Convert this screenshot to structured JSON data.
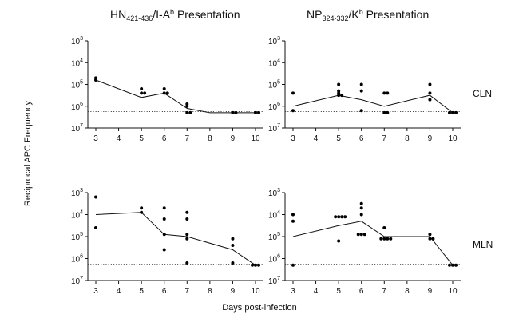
{
  "figure": {
    "ylabel": "Reciprocal APC Frequency",
    "xlabel": "Days post-infection",
    "row_labels": [
      "CLN",
      "MLN"
    ],
    "col_titles": [
      {
        "base": "HN",
        "sub": "421-436",
        "mid": "/I-A",
        "sup": "b",
        "rest": " Presentation"
      },
      {
        "base": "NP",
        "sub": "324-332",
        "mid": "/K",
        "sup": "b",
        "rest": " Presentation"
      }
    ]
  },
  "chart_data": [
    {
      "type": "scatter",
      "panel": "HN CLN",
      "xticks": [
        3,
        4,
        5,
        6,
        7,
        8,
        9,
        10
      ],
      "yticks": [
        {
          "b": "10",
          "e": "3"
        },
        {
          "b": "10",
          "e": "4"
        },
        {
          "b": "10",
          "e": "5"
        },
        {
          "b": "10",
          "e": "6"
        },
        {
          "b": "10",
          "e": "7"
        }
      ],
      "ylim": [
        3,
        7
      ],
      "scale": "log-exponent",
      "threshold": 6.25,
      "points": [
        [
          3,
          4.7
        ],
        [
          3,
          4.8
        ],
        [
          5,
          5.4
        ],
        [
          5,
          5.4
        ],
        [
          5,
          5.2
        ],
        [
          6,
          5.4
        ],
        [
          6,
          5.4
        ],
        [
          6,
          5.2
        ],
        [
          7,
          5.9
        ],
        [
          7,
          6.0
        ],
        [
          7,
          6.3
        ],
        [
          7,
          6.3
        ],
        [
          9,
          6.3
        ],
        [
          9,
          6.3
        ],
        [
          10,
          6.3
        ],
        [
          10,
          6.3
        ]
      ],
      "mean_line": [
        [
          3,
          4.8
        ],
        [
          5,
          5.6
        ],
        [
          6,
          5.4
        ],
        [
          7,
          6.1
        ],
        [
          8,
          6.3
        ],
        [
          9,
          6.3
        ],
        [
          10,
          6.3
        ]
      ]
    },
    {
      "type": "scatter",
      "panel": "NP CLN",
      "xticks": [
        3,
        4,
        5,
        6,
        7,
        8,
        9,
        10
      ],
      "yticks": [
        {
          "b": "10",
          "e": "3"
        },
        {
          "b": "10",
          "e": "4"
        },
        {
          "b": "10",
          "e": "5"
        },
        {
          "b": "10",
          "e": "6"
        },
        {
          "b": "10",
          "e": "7"
        }
      ],
      "ylim": [
        3,
        7
      ],
      "scale": "log-exponent",
      "threshold": 6.25,
      "points": [
        [
          3,
          5.4
        ],
        [
          3,
          6.2
        ],
        [
          5,
          5.0
        ],
        [
          5,
          5.3
        ],
        [
          5,
          5.4
        ],
        [
          5,
          5.5
        ],
        [
          5,
          5.5
        ],
        [
          6,
          5.0
        ],
        [
          6,
          5.3
        ],
        [
          6,
          6.2
        ],
        [
          7,
          5.4
        ],
        [
          7,
          5.4
        ],
        [
          7,
          6.3
        ],
        [
          7,
          6.3
        ],
        [
          9,
          5.0
        ],
        [
          9,
          5.4
        ],
        [
          9,
          5.7
        ],
        [
          10,
          6.3
        ],
        [
          10,
          6.3
        ],
        [
          10,
          6.3
        ]
      ],
      "mean_line": [
        [
          3,
          6.0
        ],
        [
          5,
          5.5
        ],
        [
          6,
          5.7
        ],
        [
          7,
          6.0
        ],
        [
          9,
          5.5
        ],
        [
          10,
          6.3
        ]
      ]
    },
    {
      "type": "scatter",
      "panel": "HN MLN",
      "xticks": [
        3,
        4,
        5,
        6,
        7,
        8,
        9,
        10
      ],
      "yticks": [
        {
          "b": "10",
          "e": "3"
        },
        {
          "b": "10",
          "e": "4"
        },
        {
          "b": "10",
          "e": "5"
        },
        {
          "b": "10",
          "e": "6"
        },
        {
          "b": "10",
          "e": "7"
        }
      ],
      "ylim": [
        3,
        7
      ],
      "scale": "log-exponent",
      "threshold": 6.25,
      "points": [
        [
          3,
          3.2
        ],
        [
          3,
          4.6
        ],
        [
          5,
          3.7
        ],
        [
          5,
          3.9
        ],
        [
          6,
          3.7
        ],
        [
          6,
          4.2
        ],
        [
          6,
          4.9
        ],
        [
          6,
          5.6
        ],
        [
          7,
          3.9
        ],
        [
          7,
          4.2
        ],
        [
          7,
          4.9
        ],
        [
          7,
          5.1
        ],
        [
          7,
          6.2
        ],
        [
          9,
          5.1
        ],
        [
          9,
          5.4
        ],
        [
          9,
          6.2
        ],
        [
          10,
          6.3
        ],
        [
          10,
          6.3
        ],
        [
          10,
          6.3
        ]
      ],
      "mean_line": [
        [
          3,
          4.0
        ],
        [
          5,
          3.9
        ],
        [
          6,
          4.9
        ],
        [
          7,
          5.0
        ],
        [
          9,
          5.6
        ],
        [
          10,
          6.3
        ]
      ]
    },
    {
      "type": "scatter",
      "panel": "NP MLN",
      "xticks": [
        3,
        4,
        5,
        6,
        7,
        8,
        9,
        10
      ],
      "yticks": [
        {
          "b": "10",
          "e": "3"
        },
        {
          "b": "10",
          "e": "4"
        },
        {
          "b": "10",
          "e": "5"
        },
        {
          "b": "10",
          "e": "6"
        },
        {
          "b": "10",
          "e": "7"
        }
      ],
      "ylim": [
        3,
        7
      ],
      "scale": "log-exponent",
      "threshold": 6.25,
      "points": [
        [
          3,
          4.0
        ],
        [
          3,
          4.3
        ],
        [
          3,
          6.3
        ],
        [
          5,
          4.1
        ],
        [
          5,
          4.1
        ],
        [
          5,
          4.1
        ],
        [
          5,
          4.1
        ],
        [
          5,
          5.2
        ],
        [
          6,
          3.5
        ],
        [
          6,
          3.7
        ],
        [
          6,
          4.0
        ],
        [
          6,
          4.9
        ],
        [
          6,
          4.9
        ],
        [
          6,
          4.9
        ],
        [
          7,
          4.6
        ],
        [
          7,
          5.1
        ],
        [
          7,
          5.1
        ],
        [
          7,
          5.1
        ],
        [
          7,
          5.1
        ],
        [
          9,
          4.9
        ],
        [
          9,
          5.1
        ],
        [
          9,
          5.1
        ],
        [
          10,
          6.3
        ],
        [
          10,
          6.3
        ],
        [
          10,
          6.3
        ]
      ],
      "mean_line": [
        [
          3,
          5.0
        ],
        [
          5,
          4.5
        ],
        [
          6,
          4.3
        ],
        [
          7,
          5.0
        ],
        [
          9,
          5.0
        ],
        [
          10,
          6.3
        ]
      ]
    }
  ]
}
